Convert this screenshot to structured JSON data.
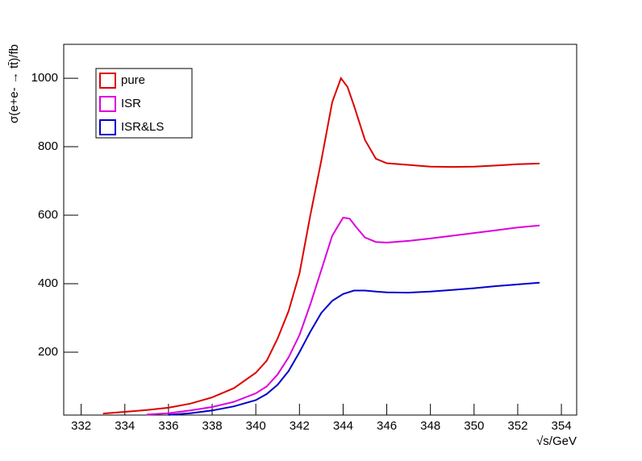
{
  "chart_data": {
    "type": "line",
    "x_label": "√s/GeV",
    "y_label": "σ(e+e- → tt̄)/fb",
    "xlim": [
      331.2,
      354.7
    ],
    "ylim": [
      16.5,
      1099
    ],
    "xticks": [
      332,
      334,
      336,
      338,
      340,
      342,
      344,
      346,
      348,
      350,
      352,
      354
    ],
    "yticks": [
      200,
      400,
      600,
      800,
      1000
    ],
    "legend": "top-left",
    "series": [
      {
        "name": "pure",
        "color": "#dd0000",
        "x": [
          333,
          334,
          335,
          336,
          337,
          338,
          339,
          340,
          340.5,
          341,
          341.5,
          342,
          342.5,
          343,
          343.5,
          343.9,
          344.2,
          344.5,
          345,
          345.5,
          346,
          347,
          348,
          349,
          350,
          351,
          352,
          353
        ],
        "values": [
          21,
          26,
          31,
          38,
          50,
          68,
          95,
          140,
          175,
          240,
          320,
          430,
          600,
          760,
          930,
          1000,
          975,
          920,
          820,
          765,
          752,
          747,
          742,
          741,
          742,
          745,
          749,
          751
        ]
      },
      {
        "name": "ISR",
        "color": "#dd00dd",
        "x": [
          335,
          336,
          337,
          338,
          339,
          340,
          340.5,
          341,
          341.5,
          342,
          342.5,
          343,
          343.5,
          344,
          344.3,
          344.6,
          345,
          345.5,
          346,
          347,
          348,
          349,
          350,
          351,
          352,
          353
        ],
        "values": [
          18,
          22,
          30,
          40,
          55,
          80,
          100,
          135,
          185,
          250,
          340,
          440,
          540,
          593,
          590,
          565,
          535,
          522,
          520,
          525,
          532,
          540,
          548,
          556,
          564,
          570
        ]
      },
      {
        "name": "ISR&LS",
        "color": "#0000cc",
        "x": [
          336,
          337,
          338,
          339,
          340,
          340.5,
          341,
          341.5,
          342,
          342.5,
          343,
          343.5,
          344,
          344.5,
          345,
          345.5,
          346,
          347,
          348,
          349,
          350,
          351,
          352,
          353
        ],
        "values": [
          17,
          22,
          30,
          42,
          60,
          78,
          105,
          145,
          200,
          260,
          315,
          350,
          370,
          380,
          380,
          377,
          375,
          374,
          377,
          382,
          387,
          393,
          398,
          403
        ]
      }
    ]
  }
}
